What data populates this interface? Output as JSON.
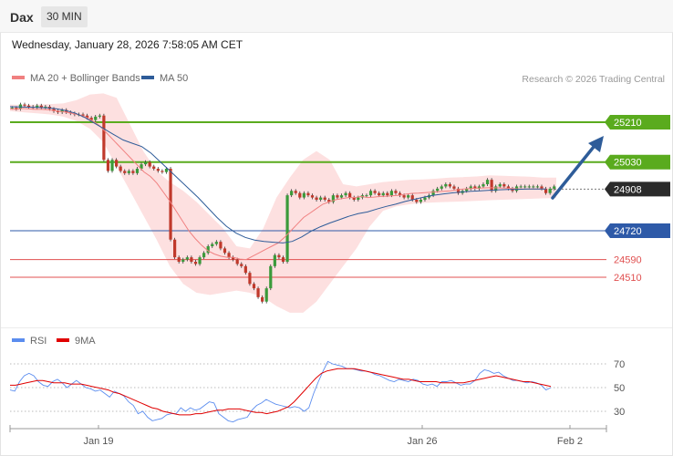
{
  "header": {
    "title": "Dax",
    "timeframe": "30 MIN"
  },
  "timestamp": "Wednesday, January 28, 2026 7:58:05 AM CET",
  "legend": {
    "bollinger": {
      "label": "MA 20 + Bollinger Bands",
      "color": "#f08080"
    },
    "ma50": {
      "label": "MA 50",
      "color": "#2e5c99"
    }
  },
  "credit": "Research © 2026 Trading Central",
  "rsi_legend": {
    "rsi": {
      "label": "RSI",
      "color": "#5b8def"
    },
    "ma9": {
      "label": "9MA",
      "color": "#e00000"
    }
  },
  "colors": {
    "resistance": "#5aab1e",
    "pivot": "#2b2b2b",
    "support_line": "#2e5aa8",
    "support_soft": "#e05050",
    "band_fill": "#fde0e0",
    "up_candle": "#3a9a3a",
    "down_candle": "#c0392b",
    "arrow": "#2e5c99"
  },
  "chart_data": [
    {
      "type": "candlestick",
      "title": "",
      "x_ticks": [
        "Jan 19",
        "Jan 26",
        "Feb 2"
      ],
      "ylim": [
        24300,
        25350
      ],
      "levels": [
        {
          "label": "25210",
          "value": 25210,
          "kind": "resistance"
        },
        {
          "label": "25030",
          "value": 25030,
          "kind": "resistance"
        },
        {
          "label": "24908",
          "value": 24908,
          "kind": "pivot"
        },
        {
          "label": "24720",
          "value": 24720,
          "kind": "support"
        },
        {
          "label": "24590",
          "value": 24590,
          "kind": "support-minor"
        },
        {
          "label": "24510",
          "value": 24510,
          "kind": "support-minor"
        }
      ],
      "close": [
        25275,
        25270,
        25290,
        25285,
        25280,
        25275,
        25285,
        25275,
        25280,
        25270,
        25260,
        25255,
        25265,
        25255,
        25250,
        25245,
        25245,
        25240,
        25230,
        25220,
        25235,
        25240,
        25040,
        24990,
        25040,
        25010,
        24990,
        24980,
        24990,
        24980,
        25000,
        25020,
        25030,
        25010,
        25000,
        24990,
        24985,
        25000,
        24680,
        24600,
        24580,
        24590,
        24600,
        24580,
        24570,
        24600,
        24620,
        24650,
        24660,
        24670,
        24640,
        24620,
        24600,
        24590,
        24570,
        24560,
        24530,
        24480,
        24460,
        24420,
        24400,
        24460,
        24560,
        24610,
        24600,
        24580,
        24880,
        24900,
        24890,
        24870,
        24890,
        24880,
        24870,
        24860,
        24870,
        24860,
        24850,
        24880,
        24870,
        24880,
        24890,
        24870,
        24860,
        24870,
        24880,
        24880,
        24900,
        24890,
        24880,
        24890,
        24880,
        24900,
        24890,
        24880,
        24870,
        24880,
        24860,
        24850,
        24860,
        24870,
        24880,
        24900,
        24910,
        24920,
        24930,
        24920,
        24910,
        24890,
        24900,
        24910,
        24920,
        24910,
        24920,
        24930,
        24950,
        24900,
        24920,
        24930,
        24920,
        24910,
        24900,
        24920,
        24920,
        24920,
        24920,
        24920,
        24920,
        24910,
        24890,
        24910,
        24920
      ],
      "ma20": [
        25270,
        25268,
        25272,
        25270,
        25268,
        25268,
        25266,
        25262,
        25258,
        25254,
        25248,
        25242,
        25232,
        25215,
        25195,
        25165,
        25135,
        25105,
        25075,
        25045,
        25015,
        24985,
        24965,
        24935,
        24895,
        24855,
        24810,
        24765,
        24720,
        24685,
        24655,
        24630,
        24615,
        24605,
        24600,
        24600,
        24592,
        24590,
        24605,
        24620,
        24635,
        24650,
        24665,
        24690,
        24720,
        24750,
        24780,
        24800,
        24820,
        24840,
        24850,
        24860,
        24865,
        24870,
        24870,
        24875,
        24870,
        24872,
        24875,
        24876,
        24878,
        24880,
        24885,
        24889,
        24890,
        24892,
        24894,
        24896,
        24898,
        24900,
        24905,
        24908,
        24910,
        24912,
        24913,
        24914,
        24914,
        24913,
        24912,
        24910,
        24908,
        24908,
        24908,
        24908,
        24908
      ],
      "ma50": [
        25280,
        25279,
        25278,
        25277,
        25275,
        25270,
        25262,
        25250,
        25230,
        25205,
        25180,
        25155,
        25130,
        25115,
        25100,
        25070,
        25030,
        24990,
        24950,
        24910,
        24870,
        24825,
        24780,
        24740,
        24710,
        24690,
        24678,
        24672,
        24668,
        24665,
        24672,
        24692,
        24718,
        24738,
        24755,
        24770,
        24785,
        24797,
        24805,
        24818,
        24830,
        24840,
        24852,
        24862,
        24872,
        24880,
        24886,
        24891,
        24895,
        24898,
        24900,
        24903,
        24905,
        24906,
        24907,
        24908,
        24908,
        24908
      ],
      "bb_upper": [
        25290,
        25288,
        25290,
        25292,
        25295,
        25310,
        25335,
        25340,
        25320,
        25200,
        25080,
        24990,
        24940,
        24900,
        24850,
        24790,
        24730,
        24650,
        24640,
        24730,
        24870,
        24960,
        25040,
        25080,
        25040,
        24930,
        24920,
        24930,
        24940,
        24945,
        24950,
        24952,
        24955,
        24960,
        24962,
        24965,
        24970,
        24968,
        24966,
        24964,
        24960,
        24960
      ],
      "bb_lower": [
        25260,
        25255,
        25250,
        25245,
        25235,
        25215,
        25180,
        25120,
        25010,
        24900,
        24790,
        24680,
        24560,
        24480,
        24440,
        24430,
        24440,
        24450,
        24440,
        24420,
        24380,
        24350,
        24350,
        24400,
        24480,
        24560,
        24640,
        24740,
        24810,
        24830,
        24840,
        24845,
        24848,
        24850,
        24852,
        24855,
        24858,
        24860,
        24862,
        24864,
        24866,
        24868
      ]
    },
    {
      "type": "line",
      "title": "",
      "ylim": [
        10,
        90
      ],
      "y_ticks": [
        70,
        50,
        30
      ],
      "series": [
        {
          "name": "RSI",
          "values": [
            48,
            47,
            55,
            60,
            62,
            60,
            55,
            52,
            51,
            55,
            57,
            54,
            50,
            53,
            56,
            53,
            50,
            49,
            47,
            48,
            45,
            42,
            47,
            45,
            43,
            38,
            35,
            28,
            30,
            25,
            22,
            23,
            24,
            27,
            28,
            28,
            33,
            30,
            33,
            31,
            32,
            35,
            38,
            37,
            28,
            25,
            22,
            21,
            23,
            24,
            25,
            31,
            35,
            37,
            40,
            38,
            36,
            35,
            34,
            33,
            34,
            33,
            30,
            33,
            45,
            55,
            64,
            72,
            70,
            69,
            68,
            66,
            66,
            65,
            64,
            64,
            63,
            61,
            60,
            58,
            56,
            55,
            57,
            56,
            55,
            57,
            56,
            53,
            52,
            53,
            51,
            55,
            55,
            56,
            54,
            52,
            53,
            53,
            56,
            62,
            65,
            64,
            62,
            63,
            60,
            58,
            56,
            56,
            55,
            54,
            55,
            54,
            52,
            48,
            50
          ]
        },
        {
          "name": "9MA",
          "values": [
            52,
            52,
            53,
            54,
            55,
            56,
            56,
            55,
            54,
            54,
            54,
            53,
            53,
            53,
            52,
            51,
            50,
            49,
            48,
            46,
            45,
            43,
            41,
            39,
            37,
            35,
            33,
            32,
            30,
            29,
            28,
            27,
            27,
            27,
            28,
            28,
            29,
            30,
            31,
            31,
            32,
            32,
            32,
            31,
            30,
            29,
            29,
            28,
            29,
            30,
            32,
            34,
            38,
            43,
            48,
            53,
            58,
            62,
            64,
            65,
            66,
            66,
            66,
            66,
            65,
            64,
            63,
            62,
            61,
            60,
            59,
            58,
            57,
            57,
            56,
            55,
            55,
            55,
            55,
            54,
            54,
            54,
            54,
            54,
            55,
            56,
            57,
            58,
            59,
            60,
            59,
            58,
            57,
            56,
            55,
            55,
            54,
            53,
            52,
            51
          ]
        }
      ]
    }
  ]
}
